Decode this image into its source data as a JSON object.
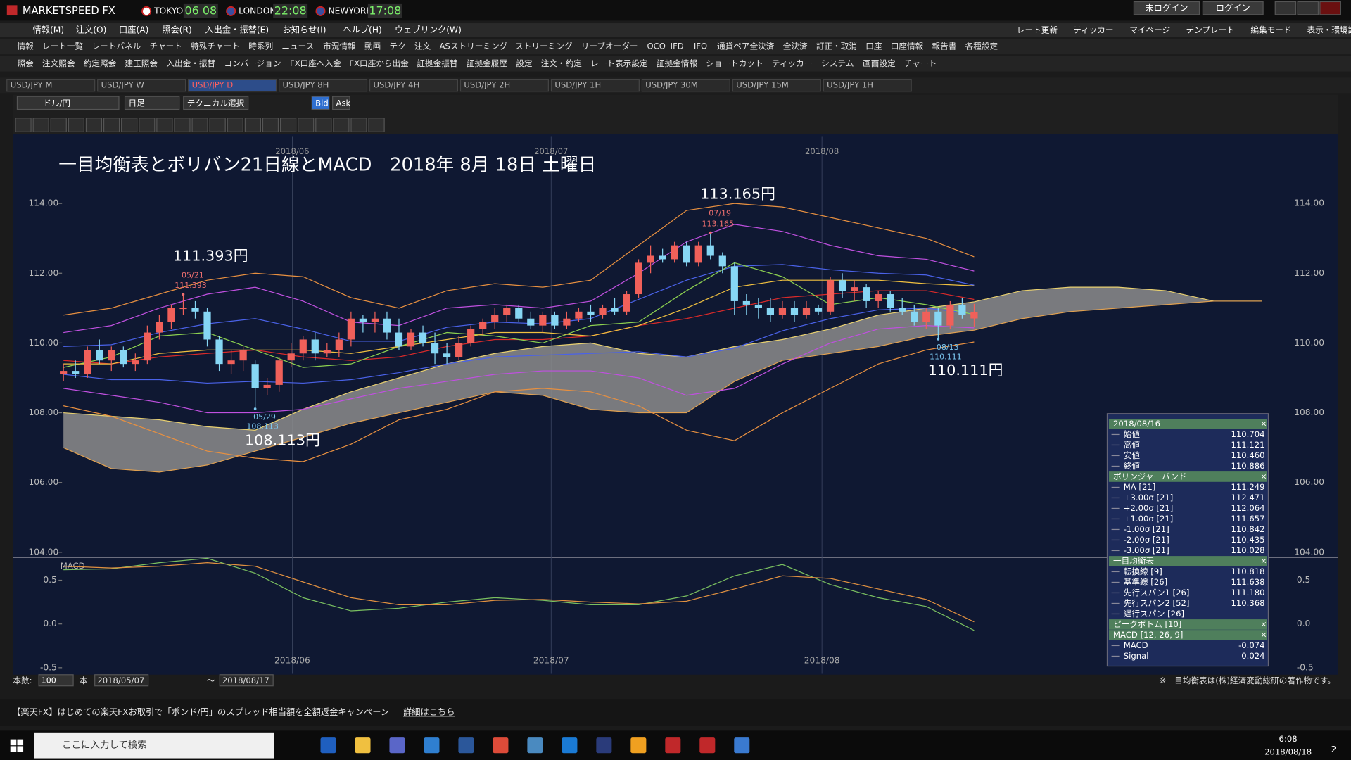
{
  "titlebar": {
    "app": "MARKETSPEED FX",
    "clocks": [
      {
        "city": "TOKYO",
        "time": "06 08"
      },
      {
        "city": "LONDON",
        "time": "22:08"
      },
      {
        "city": "NEWYORK",
        "time": "17:08"
      }
    ],
    "buttons": [
      "未ログイン",
      "ログイン"
    ]
  },
  "menu": [
    "情報(M)",
    "注文(O)",
    "口座(A)",
    "照会(R)",
    "入出金・振替(E)",
    "お知らせ(I)",
    "ヘルプ(H)",
    "ウェブリンク(W)"
  ],
  "toolbar_right": [
    "レート更新",
    "ティッカー",
    "マイページ",
    "テンプレート",
    "編集モード",
    "表示・環境設定"
  ],
  "toolbar1": [
    "情報",
    "レート一覧",
    "レートパネル",
    "チャート",
    "特殊チャート",
    "時系列",
    "ニュース",
    "市況情報",
    "動画",
    "テク",
    "注文",
    "ASストリーミング",
    "ストリーミング",
    "リーブオーダー",
    "OCO",
    "IFD",
    "IFO",
    "通貨ペア全決済",
    "全決済",
    "訂正・取消",
    "口座",
    "口座情報",
    "報告書",
    "各種設定"
  ],
  "toolbar2": [
    "照会",
    "注文照会",
    "約定照会",
    "建玉照会",
    "入出金・振替",
    "コンバージョン",
    "FX口座へ入金",
    "FX口座から出金",
    "証拠金振替",
    "証拠金履歴",
    "設定",
    "注文・約定",
    "レート表示設定",
    "証拠金情報",
    "ショートカット",
    "ティッカー",
    "システム",
    "画面設定",
    "チャート"
  ],
  "tabs": [
    "USD/JPY M",
    "USD/JPY W",
    "USD/JPY D",
    "USD/JPY 8H",
    "USD/JPY 4H",
    "USD/JPY 2H",
    "USD/JPY 1H",
    "USD/JPY 30M",
    "USD/JPY 15M",
    "USD/JPY 1H"
  ],
  "active_tab": 2,
  "chart_toolbar": {
    "pair": "ドル/円",
    "period": "日足",
    "technical": "テクニカル選択",
    "bid": "Bid",
    "ask": "Ask"
  },
  "chart_data": {
    "type": "candlestick",
    "title": "一目均衡表とボリバン21日線とMACD　2018年 8月 18日 土曜日",
    "up_color": "#f0605a",
    "down_color": "#86d6f4",
    "ohlc": [
      [
        109.1,
        109.4,
        108.9,
        109.2
      ],
      [
        109.2,
        109.5,
        109.0,
        109.1
      ],
      [
        109.1,
        109.9,
        109.0,
        109.8
      ],
      [
        109.8,
        110.1,
        109.4,
        109.5
      ],
      [
        109.5,
        109.9,
        109.2,
        109.8
      ],
      [
        109.8,
        109.9,
        109.3,
        109.4
      ],
      [
        109.4,
        109.7,
        109.2,
        109.5
      ],
      [
        109.5,
        110.5,
        109.4,
        110.3
      ],
      [
        110.3,
        110.8,
        110.1,
        110.6
      ],
      [
        110.6,
        111.1,
        110.4,
        111.0
      ],
      [
        111.0,
        111.393,
        110.8,
        111.0
      ],
      [
        111.0,
        111.2,
        110.7,
        110.9
      ],
      [
        110.9,
        111.0,
        109.9,
        110.1
      ],
      [
        110.1,
        110.2,
        109.2,
        109.4
      ],
      [
        109.4,
        109.8,
        109.1,
        109.5
      ],
      [
        109.5,
        109.9,
        109.2,
        109.8
      ],
      [
        109.4,
        109.5,
        108.113,
        108.7
      ],
      [
        108.7,
        109.0,
        108.5,
        108.8
      ],
      [
        108.8,
        109.6,
        108.6,
        109.5
      ],
      [
        109.5,
        110.0,
        109.3,
        109.7
      ],
      [
        109.7,
        110.2,
        109.5,
        110.1
      ],
      [
        110.1,
        110.3,
        109.5,
        109.7
      ],
      [
        109.7,
        110.0,
        109.6,
        109.8
      ],
      [
        109.8,
        110.3,
        109.6,
        110.1
      ],
      [
        110.1,
        110.9,
        109.9,
        110.7
      ],
      [
        110.7,
        110.8,
        110.3,
        110.6
      ],
      [
        110.6,
        110.9,
        110.3,
        110.7
      ],
      [
        110.7,
        110.9,
        110.1,
        110.3
      ],
      [
        110.3,
        110.7,
        109.8,
        109.9
      ],
      [
        109.9,
        110.4,
        109.8,
        110.3
      ],
      [
        110.3,
        110.5,
        109.9,
        110.0
      ],
      [
        110.0,
        110.3,
        109.4,
        109.7
      ],
      [
        109.7,
        110.0,
        109.4,
        109.6
      ],
      [
        109.6,
        110.2,
        109.5,
        110.0
      ],
      [
        110.0,
        110.5,
        109.9,
        110.4
      ],
      [
        110.4,
        110.7,
        110.2,
        110.6
      ],
      [
        110.6,
        111.0,
        110.4,
        110.8
      ],
      [
        110.8,
        111.1,
        110.6,
        111.0
      ],
      [
        111.0,
        111.1,
        110.6,
        110.7
      ],
      [
        110.7,
        110.9,
        110.4,
        110.5
      ],
      [
        110.5,
        110.9,
        110.3,
        110.8
      ],
      [
        110.8,
        110.9,
        110.4,
        110.5
      ],
      [
        110.5,
        110.9,
        110.4,
        110.7
      ],
      [
        110.7,
        111.0,
        110.6,
        110.9
      ],
      [
        110.9,
        111.1,
        110.6,
        110.8
      ],
      [
        110.8,
        111.1,
        110.7,
        111.0
      ],
      [
        111.0,
        111.3,
        110.8,
        110.9
      ],
      [
        110.9,
        111.5,
        110.8,
        111.4
      ],
      [
        111.4,
        112.4,
        111.3,
        112.3
      ],
      [
        112.3,
        112.8,
        112.0,
        112.5
      ],
      [
        112.5,
        112.7,
        112.3,
        112.4
      ],
      [
        112.4,
        112.9,
        112.3,
        112.8
      ],
      [
        112.8,
        112.9,
        112.2,
        112.3
      ],
      [
        112.3,
        112.9,
        112.2,
        112.8
      ],
      [
        112.8,
        113.165,
        112.4,
        112.5
      ],
      [
        112.5,
        112.6,
        112.0,
        112.2
      ],
      [
        112.2,
        112.3,
        110.8,
        111.2
      ],
      [
        111.2,
        111.4,
        110.8,
        111.1
      ],
      [
        111.1,
        111.3,
        110.7,
        111.0
      ],
      [
        111.0,
        111.3,
        110.6,
        110.8
      ],
      [
        110.8,
        111.2,
        110.7,
        111.0
      ],
      [
        111.0,
        111.2,
        110.6,
        110.8
      ],
      [
        110.8,
        111.2,
        110.7,
        111.0
      ],
      [
        111.0,
        111.1,
        110.8,
        110.9
      ],
      [
        110.9,
        111.9,
        110.8,
        111.8
      ],
      [
        111.8,
        112.0,
        111.3,
        111.5
      ],
      [
        111.5,
        111.8,
        111.2,
        111.6
      ],
      [
        111.6,
        111.7,
        111.0,
        111.2
      ],
      [
        111.2,
        111.5,
        111.0,
        111.4
      ],
      [
        111.4,
        111.5,
        110.9,
        111.0
      ],
      [
        111.0,
        111.3,
        110.8,
        110.9
      ],
      [
        110.9,
        111.1,
        110.5,
        110.6
      ],
      [
        110.6,
        111.0,
        110.4,
        110.9
      ],
      [
        110.9,
        111.0,
        110.111,
        110.5
      ],
      [
        110.5,
        111.2,
        110.4,
        111.1
      ],
      [
        111.1,
        111.3,
        110.7,
        110.8
      ],
      [
        110.704,
        111.121,
        110.46,
        110.886
      ]
    ],
    "xlim": [
      -4,
      106.3
    ],
    "ylim": [
      103.9,
      115.93
    ],
    "yticks": [
      {
        "value": 104,
        "label": "104.00"
      },
      {
        "value": 106,
        "label": "106.00"
      },
      {
        "value": 108,
        "label": "108.00"
      },
      {
        "value": 110,
        "label": "110.00"
      },
      {
        "value": 112,
        "label": "112.00"
      },
      {
        "value": 114,
        "label": "114.00"
      }
    ],
    "x_labels": [
      {
        "value": 19.1,
        "label": "2018/06"
      },
      {
        "value": 40.7,
        "label": "2018/07"
      },
      {
        "value": 63.3,
        "label": "2018/08"
      }
    ],
    "grid": true,
    "lines": {
      "x": [
        0,
        4,
        8,
        12,
        16,
        20,
        24,
        28,
        32,
        36,
        40,
        44,
        48,
        52,
        56,
        60,
        64,
        68,
        72,
        76
      ],
      "series": [
        {
          "color": "#e89040",
          "values": [
            110.8,
            111.0,
            111.4,
            111.8,
            112.0,
            111.9,
            111.3,
            111.0,
            111.5,
            111.7,
            111.6,
            111.8,
            112.8,
            113.8,
            114.0,
            113.9,
            113.6,
            113.3,
            113.0,
            112.471
          ]
        },
        {
          "color": "#c050e0",
          "values": [
            110.3,
            110.5,
            111.0,
            111.4,
            111.6,
            111.2,
            110.6,
            110.5,
            111.0,
            111.1,
            111.0,
            111.2,
            112.0,
            112.9,
            113.4,
            113.2,
            112.8,
            112.5,
            112.4,
            112.064
          ]
        },
        {
          "color": "#4a62e8",
          "values": [
            109.9,
            109.95,
            110.3,
            110.55,
            110.7,
            110.4,
            110.05,
            110.05,
            110.45,
            110.6,
            110.55,
            110.7,
            111.25,
            111.8,
            112.2,
            112.25,
            112.1,
            112.0,
            111.95,
            111.657
          ]
        },
        {
          "color": "#d82a2a",
          "values": [
            109.5,
            109.4,
            109.6,
            109.7,
            109.8,
            109.6,
            109.5,
            109.6,
            109.9,
            110.1,
            110.1,
            110.2,
            110.5,
            110.7,
            111.0,
            111.3,
            111.4,
            111.5,
            111.5,
            111.249
          ]
        },
        {
          "color": "#4a62e8",
          "values": [
            109.1,
            108.95,
            108.95,
            108.85,
            108.9,
            108.85,
            108.95,
            109.15,
            109.4,
            109.6,
            109.65,
            109.7,
            109.75,
            109.6,
            109.85,
            110.35,
            110.7,
            110.95,
            111.0,
            110.842
          ]
        },
        {
          "color": "#c050e0",
          "values": [
            108.7,
            108.5,
            108.3,
            108.0,
            108.0,
            108.1,
            108.4,
            108.7,
            108.9,
            109.1,
            109.2,
            109.2,
            109.0,
            108.5,
            108.7,
            109.4,
            110.0,
            110.4,
            110.5,
            110.435
          ]
        },
        {
          "color": "#e89040",
          "values": [
            108.2,
            107.9,
            107.4,
            106.9,
            106.7,
            106.6,
            107.1,
            107.8,
            108.1,
            108.6,
            108.7,
            108.6,
            108.2,
            107.5,
            107.2,
            108.0,
            108.7,
            109.4,
            109.8,
            110.028
          ]
        },
        {
          "color": "#8cd050",
          "values": [
            109.3,
            109.6,
            110.2,
            110.3,
            109.8,
            109.3,
            109.4,
            109.9,
            110.3,
            110.2,
            110.0,
            110.5,
            110.6,
            111.5,
            112.3,
            111.9,
            111.1,
            111.3,
            111.1,
            110.818
          ]
        },
        {
          "color": "#f0c040",
          "values": [
            109.4,
            109.4,
            109.7,
            109.8,
            109.8,
            109.8,
            109.7,
            109.9,
            110.1,
            110.3,
            110.3,
            110.2,
            110.5,
            111.0,
            111.6,
            111.8,
            111.8,
            111.8,
            111.7,
            111.638
          ]
        }
      ]
    },
    "cloud": {
      "x": [
        0,
        4,
        8,
        12,
        16,
        20,
        24,
        28,
        32,
        36,
        40,
        44,
        48,
        52,
        56,
        60,
        64,
        68,
        72,
        76,
        80,
        84,
        88,
        92,
        96,
        100
      ],
      "fill": "#8c8c8c",
      "span1": {
        "color": "#e8d070",
        "values": [
          108.0,
          107.9,
          107.8,
          107.6,
          107.5,
          108.1,
          108.6,
          109.0,
          109.4,
          109.7,
          109.9,
          110.0,
          109.7,
          109.6,
          109.9,
          110.1,
          110.4,
          110.8,
          111.0,
          111.18,
          111.5,
          111.6,
          111.6,
          111.5,
          111.2,
          111.2
        ]
      },
      "span2": {
        "color": "#e0a050",
        "values": [
          107.0,
          106.4,
          106.3,
          106.5,
          106.9,
          107.3,
          107.7,
          108.0,
          108.3,
          108.6,
          108.5,
          108.1,
          108.0,
          108.0,
          108.9,
          109.5,
          109.7,
          109.9,
          110.2,
          110.368,
          110.7,
          110.9,
          111.0,
          111.1,
          111.2,
          111.2
        ]
      }
    },
    "annotations": [
      {
        "label": "111.393円",
        "date": "05/21",
        "value": 111.393,
        "kind": "high"
      },
      {
        "label": "108.113円",
        "date": "05/29",
        "value": 108.113,
        "kind": "low"
      },
      {
        "label": "113.165円",
        "date": "07/19",
        "value": 113.165,
        "kind": "high"
      },
      {
        "label": "110.111円",
        "date": "08/13",
        "value": 110.111,
        "kind": "low"
      }
    ],
    "macd": {
      "label": "MACD",
      "ylim": [
        -0.57,
        0.73
      ],
      "yticks": [
        0.5,
        {
          "value": 0,
          "label": "0.0"
        },
        -0.5
      ],
      "macd": {
        "color": "#7ac060",
        "values": [
          0.62,
          0.63,
          0.7,
          0.75,
          0.58,
          0.3,
          0.15,
          0.18,
          0.25,
          0.3,
          0.27,
          0.22,
          0.22,
          0.32,
          0.55,
          0.68,
          0.45,
          0.3,
          0.2,
          -0.074
        ]
      },
      "signal": {
        "color": "#e09040",
        "values": [
          0.66,
          0.64,
          0.66,
          0.7,
          0.66,
          0.48,
          0.3,
          0.22,
          0.22,
          0.27,
          0.28,
          0.25,
          0.23,
          0.26,
          0.4,
          0.55,
          0.52,
          0.4,
          0.28,
          0.024
        ]
      }
    }
  },
  "info_panel": {
    "sections": [
      {
        "title": "2018/08/16",
        "rows": [
          {
            "label": "始値",
            "value": "110.704"
          },
          {
            "label": "高値",
            "value": "111.121"
          },
          {
            "label": "安値",
            "value": "110.460"
          },
          {
            "label": "終値",
            "value": "110.886"
          }
        ]
      },
      {
        "title": "ボリンジャーバンド",
        "rows": [
          {
            "label": "MA [21]",
            "value": "111.249"
          },
          {
            "label": "+3.00σ [21]",
            "value": "112.471"
          },
          {
            "label": "+2.00σ [21]",
            "value": "112.064"
          },
          {
            "label": "+1.00σ [21]",
            "value": "111.657"
          },
          {
            "label": "-1.00σ [21]",
            "value": "110.842"
          },
          {
            "label": "-2.00σ [21]",
            "value": "110.435"
          },
          {
            "label": "-3.00σ [21]",
            "value": "110.028"
          }
        ]
      },
      {
        "title": "一目均衡表",
        "rows": [
          {
            "label": "転換線 [9]",
            "value": "110.818"
          },
          {
            "label": "基準線 [26]",
            "value": "111.638"
          },
          {
            "label": "先行スパン1 [26]",
            "value": "111.180"
          },
          {
            "label": "先行スパン2 [52]",
            "value": "110.368"
          },
          {
            "label": "遅行スパン [26]"
          }
        ]
      },
      {
        "title": "ピークボトム [10]",
        "rows": []
      },
      {
        "title": "MACD [12, 26, 9]",
        "rows": [
          {
            "label": "MACD",
            "value": "-0.074"
          },
          {
            "label": "Signal",
            "value": "0.024"
          }
        ]
      }
    ]
  },
  "bottom_bar": {
    "count_label": "本数:",
    "count": "100",
    "unit": "本",
    "from": "2018/05/07",
    "tilde": "～",
    "to": "2018/08/17",
    "copyright": "※一目均衡表は(株)経済変動総研の著作物です。"
  },
  "notice": {
    "text": "【楽天FX】はじめての楽天FXお取引で「ポンド/円」のスプレッド相当額を全額返金キャンペーン",
    "link": "詳細はこちら"
  },
  "taskbar": {
    "search": "ここに入力して検索",
    "time": "6:08",
    "date": "2018/08/18",
    "badge": "2"
  }
}
